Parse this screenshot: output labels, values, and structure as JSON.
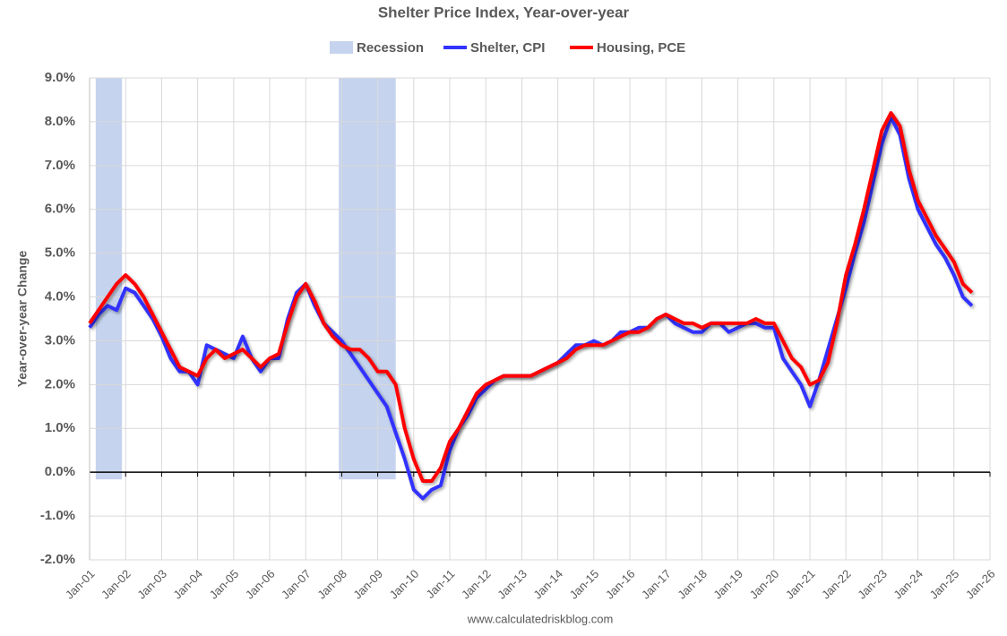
{
  "chart_data": {
    "type": "line",
    "title": "Shelter Price Index, Year-over-year",
    "y_label": "Year-over-year Change",
    "source": "www.calculatedriskblog.com",
    "recessions": {
      "name": "Recession",
      "color": "#c5d3ee",
      "periods": [
        [
          2001.17,
          2001.9
        ],
        [
          2007.92,
          2009.5
        ]
      ]
    },
    "x": [
      2001,
      2001.25,
      2001.5,
      2001.75,
      2002,
      2002.25,
      2002.5,
      2002.75,
      2003,
      2003.25,
      2003.5,
      2003.75,
      2004,
      2004.25,
      2004.5,
      2004.75,
      2005,
      2005.25,
      2005.5,
      2005.75,
      2006,
      2006.25,
      2006.5,
      2006.75,
      2007,
      2007.25,
      2007.5,
      2007.75,
      2008,
      2008.25,
      2008.5,
      2008.75,
      2009,
      2009.25,
      2009.5,
      2009.75,
      2010,
      2010.25,
      2010.5,
      2010.75,
      2011,
      2011.25,
      2011.5,
      2011.75,
      2012,
      2012.25,
      2012.5,
      2012.75,
      2013,
      2013.25,
      2013.5,
      2013.75,
      2014,
      2014.25,
      2014.5,
      2014.75,
      2015,
      2015.25,
      2015.5,
      2015.75,
      2016,
      2016.25,
      2016.5,
      2016.75,
      2017,
      2017.25,
      2017.5,
      2017.75,
      2018,
      2018.25,
      2018.5,
      2018.75,
      2019,
      2019.25,
      2019.5,
      2019.75,
      2020,
      2020.25,
      2020.5,
      2020.75,
      2021,
      2021.25,
      2021.5,
      2021.75,
      2022,
      2022.25,
      2022.5,
      2022.75,
      2023,
      2023.25,
      2023.5,
      2023.75,
      2024,
      2024.25,
      2024.5,
      2024.75,
      2025,
      2025.25,
      2025.5
    ],
    "series": [
      {
        "name": "Shelter, CPI",
        "color": "#3333ff",
        "values": [
          3.3,
          3.6,
          3.8,
          3.7,
          4.2,
          4.1,
          3.8,
          3.5,
          3.1,
          2.6,
          2.3,
          2.3,
          2.0,
          2.9,
          2.8,
          2.7,
          2.6,
          3.1,
          2.6,
          2.3,
          2.6,
          2.6,
          3.5,
          4.1,
          4.3,
          3.8,
          3.4,
          3.2,
          3.0,
          2.7,
          2.4,
          2.1,
          1.8,
          1.5,
          0.9,
          0.3,
          -0.4,
          -0.6,
          -0.4,
          -0.3,
          0.5,
          1.0,
          1.3,
          1.7,
          1.9,
          2.1,
          2.2,
          2.2,
          2.2,
          2.2,
          2.3,
          2.4,
          2.5,
          2.7,
          2.9,
          2.9,
          3.0,
          2.9,
          3.0,
          3.2,
          3.2,
          3.3,
          3.3,
          3.5,
          3.6,
          3.4,
          3.3,
          3.2,
          3.2,
          3.4,
          3.4,
          3.2,
          3.3,
          3.4,
          3.4,
          3.3,
          3.3,
          2.6,
          2.3,
          2.0,
          1.5,
          2.1,
          2.8,
          3.5,
          4.2,
          5.0,
          5.7,
          6.6,
          7.5,
          8.1,
          7.7,
          6.7,
          6.0,
          5.6,
          5.2,
          4.9,
          4.5,
          4.0,
          3.8
        ]
      },
      {
        "name": "Housing, PCE",
        "color": "#ff0000",
        "values": [
          3.4,
          3.7,
          4.0,
          4.3,
          4.5,
          4.3,
          4.0,
          3.6,
          3.2,
          2.8,
          2.4,
          2.3,
          2.2,
          2.6,
          2.8,
          2.6,
          2.7,
          2.8,
          2.6,
          2.4,
          2.6,
          2.7,
          3.4,
          4.0,
          4.3,
          3.9,
          3.4,
          3.1,
          2.9,
          2.8,
          2.8,
          2.6,
          2.3,
          2.3,
          2.0,
          1.0,
          0.3,
          -0.2,
          -0.2,
          0.1,
          0.7,
          1.0,
          1.4,
          1.8,
          2.0,
          2.1,
          2.2,
          2.2,
          2.2,
          2.2,
          2.3,
          2.4,
          2.5,
          2.6,
          2.8,
          2.9,
          2.9,
          2.9,
          3.0,
          3.1,
          3.2,
          3.2,
          3.3,
          3.5,
          3.6,
          3.5,
          3.4,
          3.4,
          3.3,
          3.4,
          3.4,
          3.4,
          3.4,
          3.4,
          3.5,
          3.4,
          3.4,
          3.0,
          2.6,
          2.4,
          2.0,
          2.1,
          2.5,
          3.4,
          4.5,
          5.2,
          6.0,
          6.9,
          7.8,
          8.2,
          7.9,
          6.9,
          6.2,
          5.8,
          5.4,
          5.1,
          4.8,
          4.3,
          4.1
        ]
      }
    ],
    "xlim": [
      2001,
      2026
    ],
    "xticks": [
      {
        "value": 2001,
        "label": "Jan-01"
      },
      {
        "value": 2002,
        "label": "Jan-02"
      },
      {
        "value": 2003,
        "label": "Jan-03"
      },
      {
        "value": 2004,
        "label": "Jan-04"
      },
      {
        "value": 2005,
        "label": "Jan-05"
      },
      {
        "value": 2006,
        "label": "Jan-06"
      },
      {
        "value": 2007,
        "label": "Jan-07"
      },
      {
        "value": 2008,
        "label": "Jan-08"
      },
      {
        "value": 2009,
        "label": "Jan-09"
      },
      {
        "value": 2010,
        "label": "Jan-10"
      },
      {
        "value": 2011,
        "label": "Jan-11"
      },
      {
        "value": 2012,
        "label": "Jan-12"
      },
      {
        "value": 2013,
        "label": "Jan-13"
      },
      {
        "value": 2014,
        "label": "Jan-14"
      },
      {
        "value": 2015,
        "label": "Jan-15"
      },
      {
        "value": 2016,
        "label": "Jan-16"
      },
      {
        "value": 2017,
        "label": "Jan-17"
      },
      {
        "value": 2018,
        "label": "Jan-18"
      },
      {
        "value": 2019,
        "label": "Jan-19"
      },
      {
        "value": 2020,
        "label": "Jan-20"
      },
      {
        "value": 2021,
        "label": "Jan-21"
      },
      {
        "value": 2022,
        "label": "Jan-22"
      },
      {
        "value": 2023,
        "label": "Jan-23"
      },
      {
        "value": 2024,
        "label": "Jan-24"
      },
      {
        "value": 2025,
        "label": "Jan-25"
      },
      {
        "value": 2026,
        "label": "Jan-26"
      }
    ],
    "ylim": [
      -2,
      9
    ],
    "yticks": [
      {
        "value": -2,
        "label": "-2.0%"
      },
      {
        "value": -1,
        "label": "-1.0%"
      },
      {
        "value": 0,
        "label": "0.0%"
      },
      {
        "value": 1,
        "label": "1.0%"
      },
      {
        "value": 2,
        "label": "2.0%"
      },
      {
        "value": 3,
        "label": "3.0%"
      },
      {
        "value": 4,
        "label": "4.0%"
      },
      {
        "value": 5,
        "label": "5.0%"
      },
      {
        "value": 6,
        "label": "6.0%"
      },
      {
        "value": 7,
        "label": "7.0%"
      },
      {
        "value": 8,
        "label": "8.0%"
      },
      {
        "value": 9,
        "label": "9.0%"
      }
    ],
    "grid": true
  }
}
